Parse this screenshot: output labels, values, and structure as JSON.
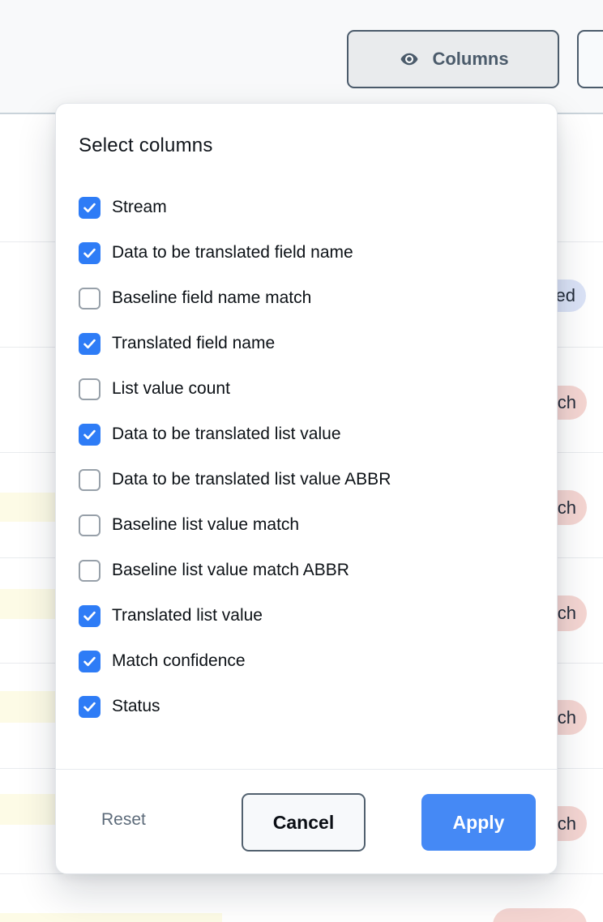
{
  "toolbar": {
    "columns_button_label": "Columns"
  },
  "popover": {
    "title": "Select columns",
    "options": [
      {
        "label": "Stream",
        "checked": true
      },
      {
        "label": "Data to be translated field name",
        "checked": true
      },
      {
        "label": "Baseline field name match",
        "checked": false
      },
      {
        "label": "Translated field name",
        "checked": true
      },
      {
        "label": "List value count",
        "checked": false
      },
      {
        "label": "Data to be translated list value",
        "checked": true
      },
      {
        "label": "Data to be translated list value ABBR",
        "checked": false
      },
      {
        "label": "Baseline list value match",
        "checked": false
      },
      {
        "label": "Baseline list value match ABBR",
        "checked": false
      },
      {
        "label": "Translated list value",
        "checked": true
      },
      {
        "label": "Match confidence",
        "checked": true
      },
      {
        "label": "Status",
        "checked": true
      }
    ],
    "footer": {
      "reset_label": "Reset",
      "cancel_label": "Cancel",
      "apply_label": "Apply"
    }
  },
  "background_table": {
    "status_badges": [
      {
        "text": "ed",
        "variant": "matched"
      },
      {
        "text": "ch",
        "variant": "no-match"
      },
      {
        "text": "ch",
        "variant": "no-match"
      },
      {
        "text": "ch",
        "variant": "no-match"
      },
      {
        "text": "ch",
        "variant": "no-match"
      },
      {
        "text": "ch",
        "variant": "no-match"
      },
      {
        "text": "",
        "variant": "no-match"
      }
    ]
  },
  "colors": {
    "accent_blue": "#2e7cf6",
    "apply_blue": "#4589f5",
    "matched_badge_bg": "#dbe3f7",
    "no_match_badge_bg": "#f5d6d2",
    "row_highlight_yellow": "#fdfbe6",
    "toolbar_button_fg": "#4b5b6b"
  }
}
